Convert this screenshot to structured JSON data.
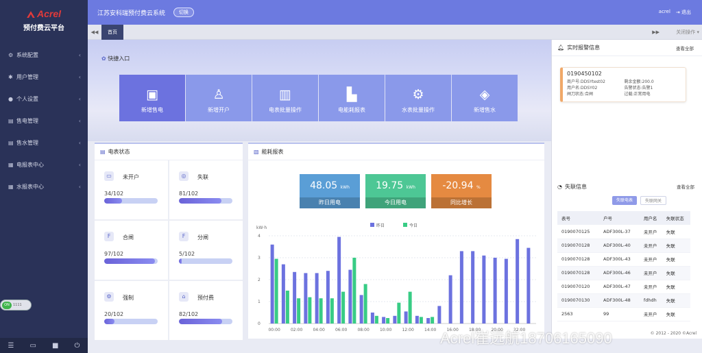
{
  "sidebar": {
    "brand": "Acrel",
    "subtitle": "预付费云平台",
    "items": [
      {
        "label": "系统配置",
        "icon": "gear-icon"
      },
      {
        "label": "用户管理",
        "icon": "asterisk-icon"
      },
      {
        "label": "个人设置",
        "icon": "person-icon"
      },
      {
        "label": "售电管理",
        "icon": "bars-icon"
      },
      {
        "label": "售水管理",
        "icon": "bars-icon"
      },
      {
        "label": "电报表中心",
        "icon": "grid-icon"
      },
      {
        "label": "水报表中心",
        "icon": "grid-icon"
      }
    ],
    "toggle": {
      "on_label": "ON",
      "text": "1111"
    },
    "bottom_icons": [
      "menu-icon",
      "monitor-icon",
      "lock-icon",
      "power-icon"
    ]
  },
  "topbar": {
    "title": "江苏安科瑞预付费云系统",
    "switch_label": "切换",
    "user": "acrel",
    "logout": "退出"
  },
  "tabs": {
    "active": "首页",
    "close_ops": "关闭操作"
  },
  "quick": {
    "title": "快捷入口",
    "items": [
      {
        "label": "新增售电",
        "icon": "add-card-icon"
      },
      {
        "label": "新增开户",
        "icon": "add-user-icon"
      },
      {
        "label": "电表批量操作",
        "icon": "meter-batch-icon"
      },
      {
        "label": "电能耗报表",
        "icon": "energy-report-icon"
      },
      {
        "label": "水表批量操作",
        "icon": "water-batch-icon"
      },
      {
        "label": "新增售水",
        "icon": "water-drop-icon"
      }
    ]
  },
  "meter_status": {
    "title": "电表状态",
    "cells": [
      {
        "label": "未开户",
        "value": "34/102",
        "fraction": 0.333
      },
      {
        "label": "失联",
        "value": "81/102",
        "fraction": 0.794
      },
      {
        "label": "合闸",
        "value": "97/102",
        "fraction": 0.951
      },
      {
        "label": "分闸",
        "value": "5/102",
        "fraction": 0.049
      },
      {
        "label": "强制",
        "value": "20/102",
        "fraction": 0.196
      },
      {
        "label": "预付费",
        "value": "82/102",
        "fraction": 0.804
      }
    ]
  },
  "energy": {
    "title": "能耗报表",
    "stats": [
      {
        "value": "48.05",
        "unit": "kWh",
        "label": "昨日用电",
        "color": "#5a9ed6"
      },
      {
        "value": "19.75",
        "unit": "kWh",
        "label": "今日用电",
        "color": "#4dc795"
      },
      {
        "value": "-20.94",
        "unit": "%",
        "label": "同比增长",
        "color": "#e58a41"
      }
    ]
  },
  "chart_data": {
    "type": "bar",
    "ylabel": "kW·h",
    "ylim": [
      0,
      4
    ],
    "yticks": [
      "0",
      "1",
      "2",
      "3",
      "4"
    ],
    "categories": [
      "00:00",
      "01:00",
      "02:00",
      "03:00",
      "04:00",
      "05:00",
      "06:00",
      "07:00",
      "08:00",
      "09:00",
      "10:00",
      "11:00",
      "12:00",
      "13:00",
      "14:00",
      "15:00",
      "16:00",
      "17:00",
      "18:00",
      "19:00",
      "20:00",
      "21:00",
      "22:00",
      "23:00"
    ],
    "xtick_labels": [
      "00:00",
      "02:00",
      "04:00",
      "06:00",
      "08:00",
      "10:00",
      "12:00",
      "14:00",
      "16:00",
      "18:00",
      "20:00",
      "22:00"
    ],
    "series": [
      {
        "name": "昨日",
        "color": "#6c72df",
        "values": [
          3.6,
          2.7,
          2.35,
          2.3,
          2.3,
          2.4,
          3.95,
          2.45,
          1.3,
          0.5,
          0.3,
          0.35,
          0.55,
          0.35,
          0.25,
          0.8,
          2.2,
          3.3,
          3.3,
          3.1,
          3.0,
          2.95,
          3.85,
          3.45
        ]
      },
      {
        "name": "今日",
        "color": "#38cc85",
        "values": [
          2.95,
          1.5,
          1.15,
          1.2,
          1.15,
          1.15,
          1.45,
          3.0,
          1.8,
          0.35,
          0.25,
          0.95,
          1.45,
          0.3,
          0.3,
          0,
          0,
          0,
          0,
          0,
          0,
          0,
          0,
          0
        ]
      }
    ],
    "legend": "top-center"
  },
  "alarm": {
    "title": "实时报警信息",
    "more": "查看全部",
    "item": {
      "id": "0190450102",
      "rows": [
        [
          "商户号:DDSYtest02",
          "剩余金额:200.0"
        ],
        [
          "用户名:DDSY02",
          "告警状态:告警1"
        ],
        [
          "闸刀状态:合闸",
          "过载:正常用电"
        ]
      ]
    }
  },
  "lost": {
    "title": "失联信息",
    "more": "查看全部",
    "btn_meter": "失联电表",
    "btn_gateway": "失联网关",
    "columns": [
      "表号",
      "户号",
      "用户名",
      "失联状态"
    ],
    "rows": [
      [
        "0190070125",
        "ADF300L-37",
        "未开户",
        "失联"
      ],
      [
        "0190070128",
        "ADF300L-40",
        "未开户",
        "失联"
      ],
      [
        "0190070128",
        "ADF300L-43",
        "未开户",
        "失联"
      ],
      [
        "0190070128",
        "ADF300L-46",
        "未开户",
        "失联"
      ],
      [
        "0190070120",
        "ADF300L-47",
        "未开户",
        "失联"
      ],
      [
        "0190070130",
        "ADF300L-48",
        "fdhdh",
        "失联"
      ],
      [
        "2563",
        "99",
        "未开户",
        "失联"
      ]
    ]
  },
  "footer": "© 2012 - 2020 ©Acrel",
  "watermark": "Acrel崔远航18706165090"
}
